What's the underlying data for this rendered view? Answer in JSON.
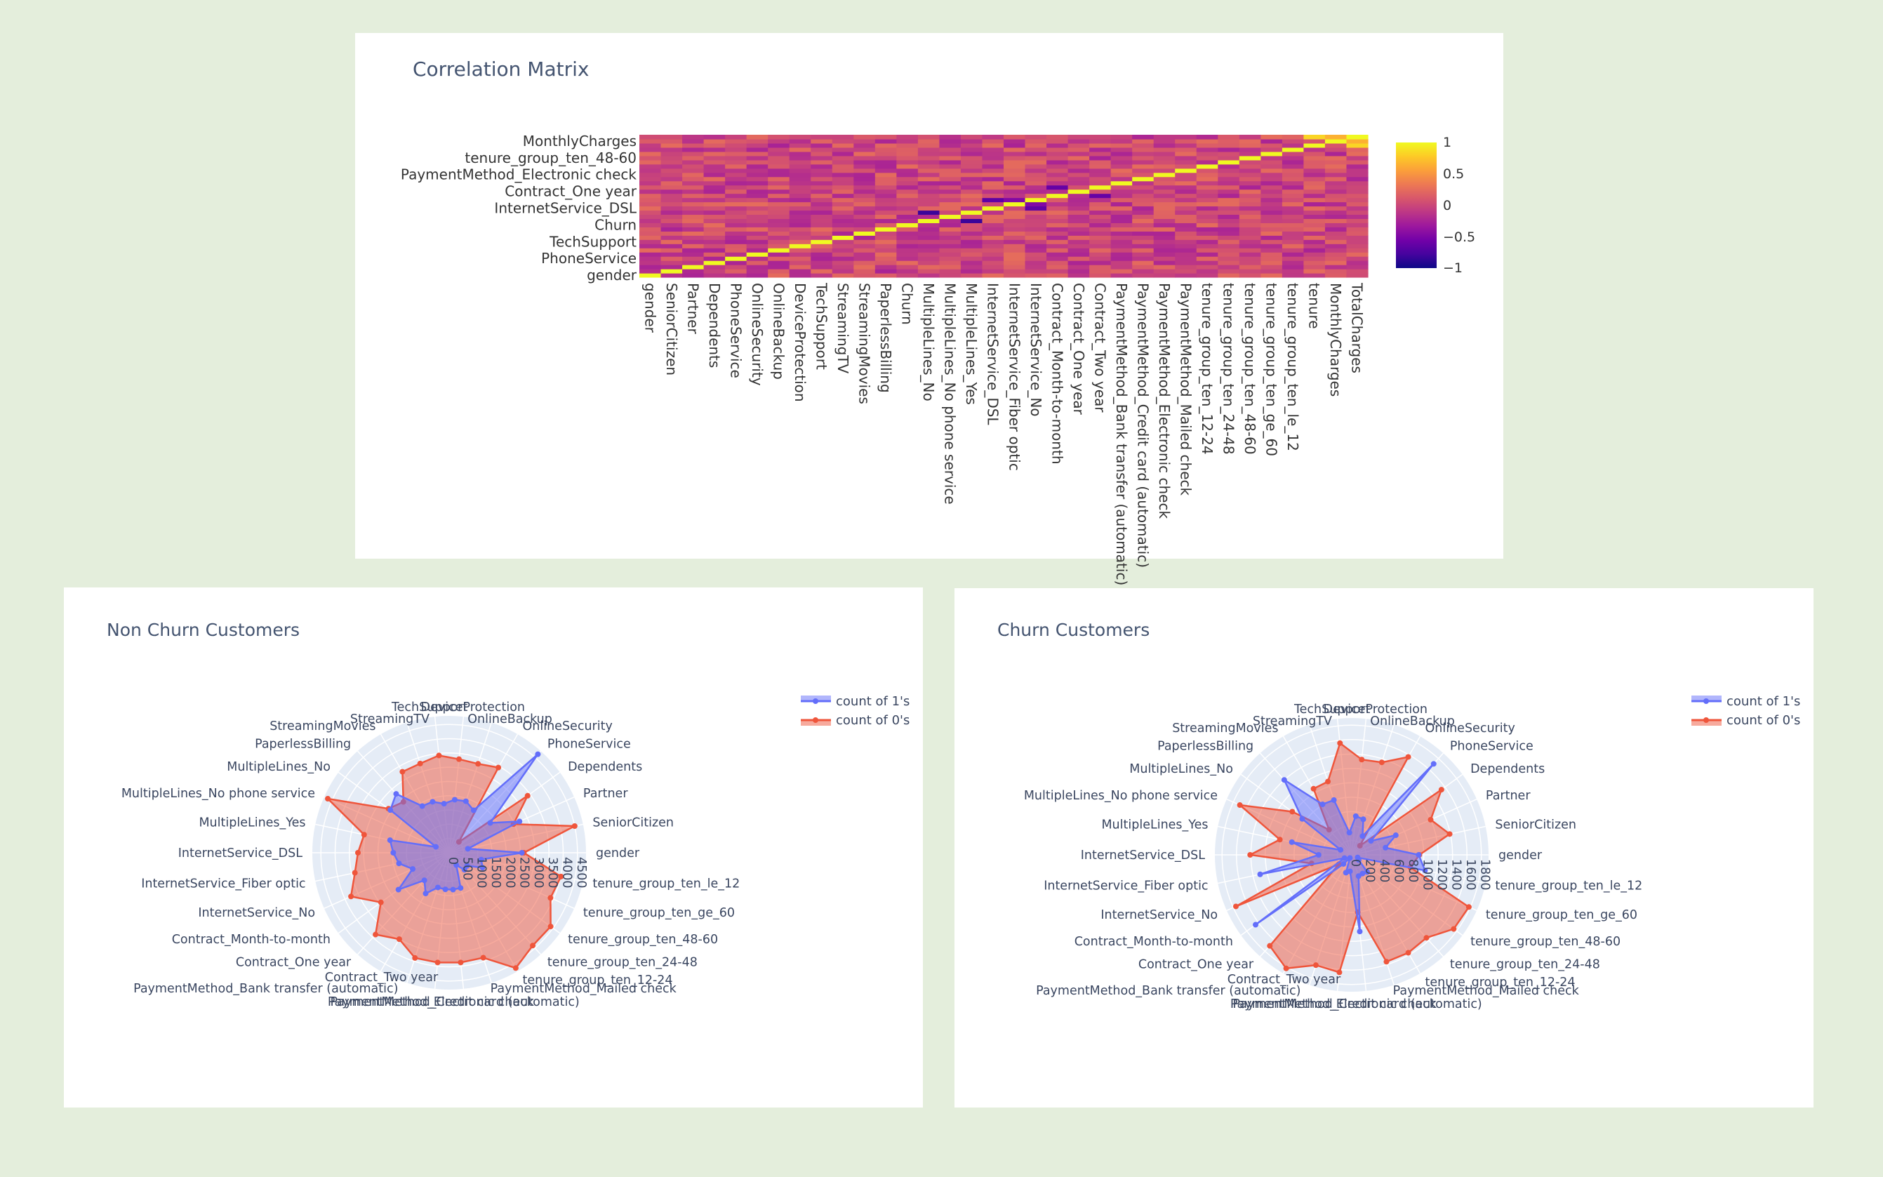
{
  "heatmap": {
    "title": "Correlation Matrix",
    "colorbar_ticks": [
      "1",
      "0.5",
      "0",
      "−0.5",
      "−1"
    ],
    "colorscale": [
      "#0d0887",
      "#46039f",
      "#7201a8",
      "#9c179e",
      "#bd3786",
      "#d8576b",
      "#ed7953",
      "#fb9f3a",
      "#fdca26",
      "#f0f921"
    ]
  },
  "nonchurn": {
    "title": "Non Churn Customers",
    "legend": [
      "count of 1's",
      "count of 0's"
    ]
  },
  "churn": {
    "title": "Churn Customers",
    "legend": [
      "count of 1's",
      "count of 0's"
    ]
  },
  "chart_data": [
    {
      "type": "heatmap",
      "title": "Correlation Matrix",
      "x": [
        "gender",
        "SeniorCitizen",
        "Partner",
        "Dependents",
        "PhoneService",
        "OnlineSecurity",
        "OnlineBackup",
        "DeviceProtection",
        "TechSupport",
        "StreamingTV",
        "StreamingMovies",
        "PaperlessBilling",
        "Churn",
        "MultipleLines_No",
        "MultipleLines_No phone service",
        "MultipleLines_Yes",
        "InternetService_DSL",
        "InternetService_Fiber optic",
        "InternetService_No",
        "Contract_Month-to-month",
        "Contract_One year",
        "Contract_Two year",
        "PaymentMethod_Bank transfer (automatic)",
        "PaymentMethod_Credit card (automatic)",
        "PaymentMethod_Electronic check",
        "PaymentMethod_Mailed check",
        "tenure_group_ten_12-24",
        "tenure_group_ten_24-48",
        "tenure_group_ten_48-60",
        "tenure_group_ten_ge_60",
        "tenure_group_ten_le_12",
        "tenure",
        "MonthlyCharges",
        "TotalCharges"
      ],
      "y_tick_labels": [
        "gender",
        "PhoneService",
        "TechSupport",
        "Churn",
        "InternetService_DSL",
        "Contract_One year",
        "PaymentMethod_Electronic check",
        "tenure_group_ten_48-60",
        "MonthlyCharges"
      ],
      "zlim": [
        -1,
        1
      ],
      "z_notes": "diagonal = 1; other cells estimated from colour"
    },
    {
      "type": "radar",
      "title": "Non Churn Customers",
      "categories": [
        "gender",
        "SeniorCitizen",
        "Partner",
        "Dependents",
        "PhoneService",
        "OnlineSecurity",
        "OnlineBackup",
        "DeviceProtection",
        "TechSupport",
        "StreamingTV",
        "StreamingMovies",
        "PaperlessBilling",
        "MultipleLines_No",
        "MultipleLines_No phone service",
        "MultipleLines_Yes",
        "InternetService_DSL",
        "InternetService_Fiber optic",
        "InternetService_No",
        "Contract_Month-to-month",
        "Contract_One year",
        "Contract_Two year",
        "PaymentMethod_Bank transfer (automatic)",
        "PaymentMethod_Credit card (automatic)",
        "PaymentMethod_Electronic check",
        "PaymentMethod_Mailed check",
        "tenure_group_ten_12-24",
        "tenure_group_ten_24-48",
        "tenure_group_ten_48-60",
        "tenure_group_ten_ge_60",
        "tenure_group_ten_le_12"
      ],
      "radial_ticks": [
        0,
        500,
        1000,
        1500,
        2000,
        2500,
        3000,
        3500,
        4000,
        4500
      ],
      "rlim": [
        0,
        4800
      ],
      "series": [
        {
          "name": "count of 1's",
          "values": [
            2550,
            670,
            2700,
            1780,
            4650,
            1720,
            1900,
            1870,
            1730,
            1880,
            1890,
            2780,
            2550,
            510,
            2120,
            1960,
            1800,
            1400,
            2200,
            1300,
            1650,
            1280,
            1290,
            1300,
            1300,
            500,
            800,
            780,
            1280,
            1150
          ]
        },
        {
          "name": "count of 0's",
          "values": [
            2620,
            4500,
            2470,
            3400,
            510,
            3450,
            3280,
            3300,
            3430,
            3290,
            3280,
            2400,
            2630,
            4660,
            3050,
            3200,
            3380,
            3770,
            2960,
            3860,
            3500,
            3880,
            3870,
            3870,
            3870,
            4670,
            4380,
            4400,
            3890,
            4010
          ]
        }
      ]
    },
    {
      "type": "radar",
      "title": "Churn Customers",
      "categories": [
        "gender",
        "SeniorCitizen",
        "Partner",
        "Dependents",
        "PhoneService",
        "OnlineSecurity",
        "OnlineBackup",
        "DeviceProtection",
        "TechSupport",
        "StreamingTV",
        "StreamingMovies",
        "PaperlessBilling",
        "MultipleLines_No",
        "MultipleLines_No phone service",
        "MultipleLines_Yes",
        "InternetService_DSL",
        "InternetService_Fiber optic",
        "InternetService_No",
        "Contract_Month-to-month",
        "Contract_One year",
        "Contract_Two year",
        "PaymentMethod_Bank transfer (automatic)",
        "PaymentMethod_Credit card (automatic)",
        "PaymentMethod_Electronic check",
        "PaymentMethod_Mailed check",
        "tenure_group_ten_12-24",
        "tenure_group_ten_24-48",
        "tenure_group_ten_48-60",
        "tenure_group_ten_ge_60",
        "tenure_group_ten_le_12"
      ],
      "radial_ticks": [
        0,
        200,
        400,
        600,
        800,
        1000,
        1200,
        1400,
        1600,
        1800
      ],
      "rlim": [
        0,
        1900
      ],
      "series": [
        {
          "name": "count of 1's",
          "values": [
            930,
            480,
            670,
            330,
            1700,
            300,
            520,
            540,
            310,
            800,
            810,
            1400,
            850,
            170,
            850,
            460,
            1300,
            110,
            1650,
            170,
            50,
            260,
            230,
            1070,
            310,
            300,
            320,
            120,
            90,
            1040
          ]
        },
        {
          "name": "count of 0's",
          "values": [
            940,
            1390,
            1200,
            1540,
            170,
            1570,
            1350,
            1330,
            1560,
            1070,
            1060,
            470,
            1020,
            1700,
            1020,
            1410,
            570,
            1760,
            220,
            1700,
            1820,
            1610,
            1640,
            800,
            1560,
            1570,
            1550,
            1750,
            1780,
            830
          ]
        }
      ]
    }
  ]
}
